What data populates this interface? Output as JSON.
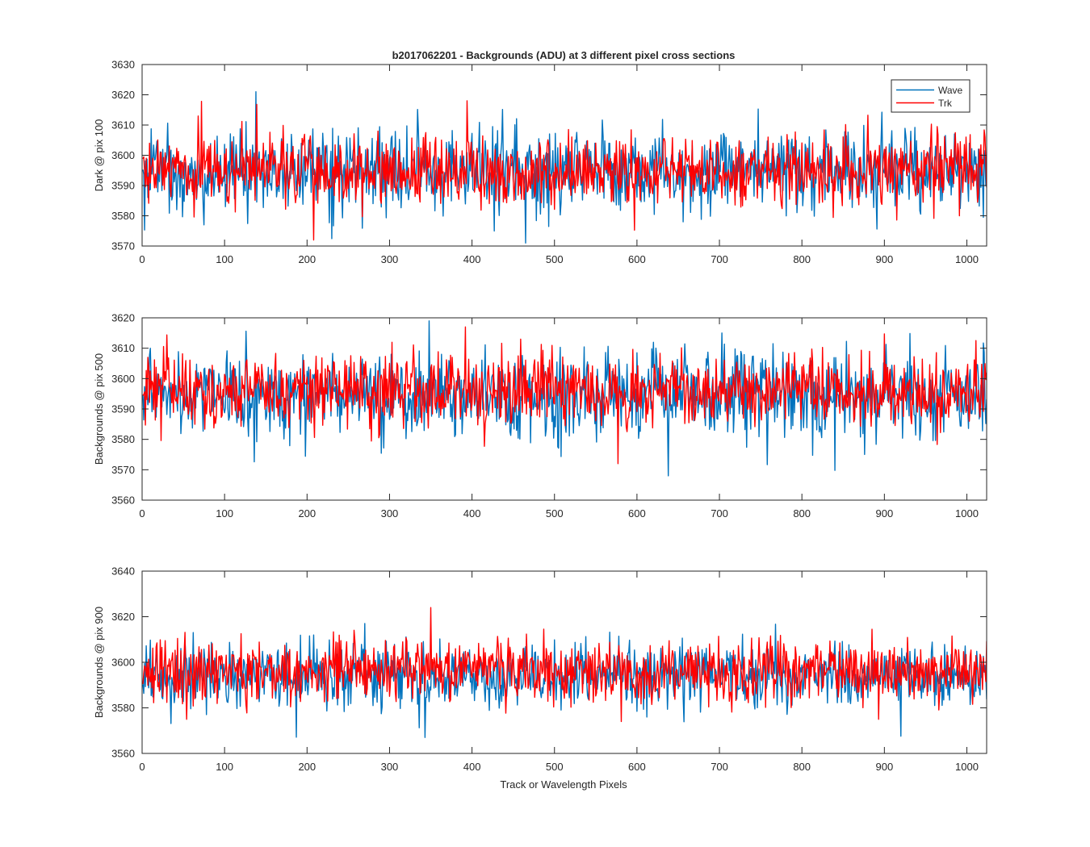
{
  "figure": {
    "title": "b2017062201 - Backgrounds (ADU) at 3 different pixel cross sections",
    "xlabel": "Track or Wavelength Pixels",
    "legend": [
      "Wave",
      "Trk"
    ]
  },
  "colors": {
    "wave": "#0072BD",
    "trk": "#FF0000",
    "axis": "#262626",
    "background": "#ffffff"
  },
  "chart_data": [
    {
      "type": "line",
      "ylabel": "Dark @ pix 100",
      "xlim": [
        0,
        1024
      ],
      "ylim": [
        3570,
        3630
      ],
      "xticks": [
        0,
        100,
        200,
        300,
        400,
        500,
        600,
        700,
        800,
        900,
        1000
      ],
      "yticks": [
        3570,
        3580,
        3590,
        3600,
        3610,
        3620,
        3630
      ],
      "legend_position": "top-right",
      "grid": false,
      "n_points": 1024,
      "series": [
        {
          "name": "Wave",
          "color": "#0072BD",
          "mean": 3595,
          "std": 7,
          "min": 3571,
          "max": 3621
        },
        {
          "name": "Trk",
          "color": "#FF0000",
          "mean": 3595,
          "std": 6,
          "min": 3572,
          "max": 3618
        }
      ]
    },
    {
      "type": "line",
      "ylabel": "Backgrounds @ pix 500",
      "xlim": [
        0,
        1024
      ],
      "ylim": [
        3560,
        3620
      ],
      "xticks": [
        0,
        100,
        200,
        300,
        400,
        500,
        600,
        700,
        800,
        900,
        1000
      ],
      "yticks": [
        3560,
        3570,
        3580,
        3590,
        3600,
        3610,
        3620
      ],
      "grid": false,
      "n_points": 1024,
      "series": [
        {
          "name": "Wave",
          "color": "#0072BD",
          "mean": 3595,
          "std": 7,
          "min": 3568,
          "max": 3619
        },
        {
          "name": "Trk",
          "color": "#FF0000",
          "mean": 3596,
          "std": 6,
          "min": 3572,
          "max": 3617
        }
      ]
    },
    {
      "type": "line",
      "ylabel": "Backgrounds @ pix 900",
      "xlim": [
        0,
        1024
      ],
      "ylim": [
        3560,
        3640
      ],
      "xticks": [
        0,
        100,
        200,
        300,
        400,
        500,
        600,
        700,
        800,
        900,
        1000
      ],
      "yticks": [
        3560,
        3580,
        3600,
        3620,
        3640
      ],
      "grid": false,
      "n_points": 1024,
      "series": [
        {
          "name": "Wave",
          "color": "#0072BD",
          "mean": 3594,
          "std": 7,
          "min": 3567,
          "max": 3617
        },
        {
          "name": "Trk",
          "color": "#FF0000",
          "mean": 3596,
          "std": 7,
          "min": 3574,
          "max": 3624
        }
      ]
    }
  ]
}
